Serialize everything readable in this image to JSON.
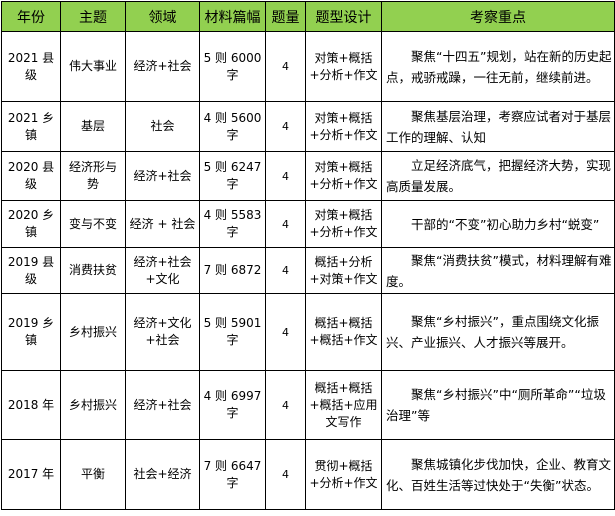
{
  "colors": {
    "header_bg": "#92d050",
    "border": "#000000"
  },
  "headers": [
    "年份",
    "主题",
    "领域",
    "材料篇幅",
    "题量",
    "题型设计",
    "考察重点"
  ],
  "rows": [
    {
      "year": "2021 县级",
      "theme": "伟大事业",
      "domain": "经济+社会",
      "material": "5 则 6000 字",
      "count": "4",
      "design": "对策+概括+分析+作文",
      "focus": "聚焦“十四五”规划，站在新的历史起点，戒骄戒躁，一往无前，继续前进。"
    },
    {
      "year": "2021 乡镇",
      "theme": "基层",
      "domain": "社会",
      "material": "4 则 5600 字",
      "count": "4",
      "design": "对策+概括+分析+作文",
      "focus": "聚焦基层治理，考察应试者对于基层工作的理解、认知"
    },
    {
      "year": "2020 县级",
      "theme": "经济形与势",
      "domain": "经济+社会",
      "material": "5 则 6247 字",
      "count": "4",
      "design": "对策+概括+分析+作文",
      "focus": "立足经济底气，把握经济大势，实现高质量发展。"
    },
    {
      "year": "2020 乡镇",
      "theme": "变与不变",
      "domain": "经济 + 社会",
      "material": "4 则 5583 字",
      "count": "4",
      "design": "对策+概括+分析+作文",
      "focus": "干部的“不变”初心助力乡村“蜕变”"
    },
    {
      "year": "2019 县级",
      "theme": "消费扶贫",
      "domain": "经济+社会+文化",
      "material": "7 则 6872",
      "count": "4",
      "design": "概括+分析+对策+作文",
      "focus": "聚焦“消费扶贫”模式，材料理解有难度。"
    },
    {
      "year": "2019 乡镇",
      "theme": "乡村振兴",
      "domain": "经济+文化+社会",
      "material": "5 则 5901 字",
      "count": "4",
      "design": "概括+概括+概括+作文",
      "focus": "聚焦“乡村振兴”，重点围绕文化振兴、产业振兴、人才振兴等展开。"
    },
    {
      "year": "2018 年",
      "theme": "乡村振兴",
      "domain": "经济+社会",
      "material": "4 则 6997 字",
      "count": "4",
      "design": "概括+概括+概括+应用文写作",
      "focus": "聚焦“乡村振兴”中“厕所革命”“垃圾治理”等"
    },
    {
      "year": "2017 年",
      "theme": "平衡",
      "domain": "社会+经济",
      "material": "7 则 6647 字",
      "count": "4",
      "design": "贯彻+概括+分析+作文",
      "focus": "聚焦城镇化步伐加快，企业、教育文化、百姓生活等过快处于“失衡”状态。"
    }
  ]
}
